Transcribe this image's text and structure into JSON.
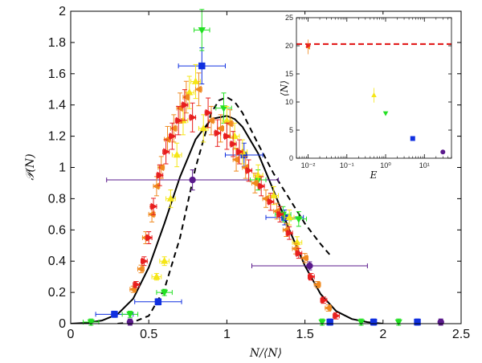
{
  "chart_data": [
    {
      "type": "scatter",
      "xlabel": "N/⟨N⟩",
      "ylabel": "𝒫(N)",
      "xlim": [
        0,
        2.5
      ],
      "ylim": [
        0,
        2
      ],
      "xticks": [
        0,
        0.5,
        1,
        1.5,
        2,
        2.5
      ],
      "xtick_labels": [
        "0",
        "0.5",
        "1",
        "1.5",
        "2",
        "2.5"
      ],
      "yticks": [
        0,
        0.2,
        0.4,
        0.6,
        0.8,
        1,
        1.2,
        1.4,
        1.6,
        1.8,
        2
      ],
      "ytick_labels": [
        "0",
        "0.2",
        "0.4",
        "0.6",
        "0.8",
        "1",
        "1.2",
        "1.4",
        "1.6",
        "1.8",
        "2"
      ],
      "grid": false,
      "series": [
        {
          "marker": "circle",
          "color": "#5a1a8c",
          "points": [
            [
              0.78,
              0.92,
              0.55
            ],
            [
              1.53,
              0.37,
              0.37
            ],
            [
              0.38,
              0.01,
              0
            ],
            [
              2.37,
              0.01,
              0
            ]
          ]
        },
        {
          "marker": "square",
          "color": "#1030e0",
          "points": [
            [
              0.28,
              0.06,
              0.12
            ],
            [
              0.56,
              0.14,
              0.15
            ],
            [
              0.84,
              1.65,
              0.15
            ],
            [
              1.11,
              1.08,
              0.12
            ],
            [
              1.37,
              0.68,
              0.12
            ],
            [
              1.66,
              0.01,
              0
            ],
            [
              1.94,
              0.01,
              0
            ],
            [
              2.22,
              0.01,
              0
            ]
          ]
        },
        {
          "marker": "triangle-down",
          "color": "#22e022",
          "points": [
            [
              0.13,
              0.01,
              0.05
            ],
            [
              0.38,
              0.06,
              0.05
            ],
            [
              0.6,
              0.2,
              0.05
            ],
            [
              0.84,
              1.88,
              0.05
            ],
            [
              0.98,
              1.38,
              0.05
            ],
            [
              1.2,
              0.92,
              0.05
            ],
            [
              1.36,
              0.7,
              0.05
            ],
            [
              1.46,
              0.67,
              0.05
            ],
            [
              1.61,
              0.01,
              0
            ],
            [
              1.86,
              0.01,
              0
            ],
            [
              2.1,
              0.01,
              0
            ]
          ]
        },
        {
          "marker": "triangle-up",
          "color": "#f5e617",
          "points": [
            [
              0.55,
              0.3,
              0.03
            ],
            [
              0.6,
              0.4,
              0.03
            ],
            [
              0.64,
              0.8,
              0.03
            ],
            [
              0.68,
              1.08,
              0.03
            ],
            [
              0.72,
              1.3,
              0.03
            ],
            [
              0.76,
              1.48,
              0.03
            ],
            [
              0.8,
              1.55,
              0.03
            ],
            [
              0.85,
              1.25,
              0.03
            ],
            [
              1.0,
              1.3,
              0.03
            ],
            [
              1.05,
              1.2,
              0.03
            ],
            [
              1.1,
              1.1,
              0.03
            ],
            [
              1.2,
              0.95,
              0.03
            ],
            [
              1.3,
              0.82,
              0.03
            ],
            [
              1.4,
              0.68,
              0.03
            ],
            [
              1.45,
              0.52,
              0.03
            ]
          ]
        },
        {
          "marker": "triangle-left",
          "color": "#f0891f",
          "points": [
            [
              0.4,
              0.22,
              0.02
            ],
            [
              0.45,
              0.35,
              0.02
            ],
            [
              0.48,
              0.55,
              0.02
            ],
            [
              0.52,
              0.7,
              0.02
            ],
            [
              0.55,
              0.88,
              0.02
            ],
            [
              0.58,
              1.0,
              0.02
            ],
            [
              0.62,
              1.18,
              0.02
            ],
            [
              0.66,
              1.25,
              0.02
            ],
            [
              0.7,
              1.38,
              0.02
            ],
            [
              0.74,
              1.45,
              0.02
            ],
            [
              0.82,
              1.5,
              0.02
            ],
            [
              0.9,
              1.3,
              0.02
            ],
            [
              0.96,
              1.25,
              0.02
            ],
            [
              1.02,
              1.28,
              0.02
            ],
            [
              1.06,
              1.05,
              0.02
            ],
            [
              1.12,
              1.0,
              0.02
            ],
            [
              1.18,
              0.9,
              0.02
            ],
            [
              1.25,
              0.8,
              0.02
            ],
            [
              1.32,
              0.72,
              0.02
            ],
            [
              1.38,
              0.6,
              0.02
            ],
            [
              1.44,
              0.48,
              0.02
            ],
            [
              1.5,
              0.42,
              0.02
            ],
            [
              1.58,
              0.25,
              0.02
            ],
            [
              1.65,
              0.1,
              0.02
            ]
          ]
        },
        {
          "marker": "triangle-right",
          "color": "#e81e1e",
          "points": [
            [
              0.42,
              0.25,
              0.02
            ],
            [
              0.47,
              0.4,
              0.02
            ],
            [
              0.5,
              0.55,
              0.02
            ],
            [
              0.53,
              0.75,
              0.02
            ],
            [
              0.57,
              0.95,
              0.02
            ],
            [
              0.61,
              1.1,
              0.02
            ],
            [
              0.65,
              1.2,
              0.02
            ],
            [
              0.69,
              1.3,
              0.02
            ],
            [
              0.73,
              1.4,
              0.02
            ],
            [
              0.78,
              1.32,
              0.02
            ],
            [
              0.88,
              1.35,
              0.02
            ],
            [
              0.94,
              1.22,
              0.02
            ],
            [
              1.0,
              1.2,
              0.02
            ],
            [
              1.04,
              1.15,
              0.02
            ],
            [
              1.08,
              1.1,
              0.02
            ],
            [
              1.14,
              0.98,
              0.02
            ],
            [
              1.22,
              0.88,
              0.02
            ],
            [
              1.28,
              0.78,
              0.02
            ],
            [
              1.34,
              0.7,
              0.02
            ],
            [
              1.4,
              0.58,
              0.02
            ],
            [
              1.46,
              0.45,
              0.02
            ],
            [
              1.54,
              0.3,
              0.02
            ],
            [
              1.62,
              0.15,
              0.02
            ],
            [
              1.7,
              0.05,
              0.02
            ]
          ]
        }
      ],
      "curves": [
        {
          "style": "solid",
          "color": "#000000",
          "x": [
            0.0,
            0.1,
            0.2,
            0.3,
            0.4,
            0.5,
            0.6,
            0.7,
            0.8,
            0.9,
            1.0,
            1.05,
            1.1,
            1.2,
            1.3,
            1.4,
            1.5,
            1.6,
            1.7,
            1.8,
            1.9,
            2.0
          ],
          "y": [
            0.0,
            0.005,
            0.02,
            0.06,
            0.16,
            0.36,
            0.64,
            0.94,
            1.18,
            1.31,
            1.33,
            1.31,
            1.26,
            1.09,
            0.85,
            0.6,
            0.37,
            0.19,
            0.08,
            0.03,
            0.01,
            0.0
          ]
        },
        {
          "style": "dashed",
          "color": "#000000",
          "x": [
            0.3,
            0.4,
            0.5,
            0.6,
            0.7,
            0.8,
            0.9,
            0.95,
            1.0,
            1.05,
            1.1,
            1.2,
            1.3,
            1.4,
            1.5,
            1.6,
            1.66
          ],
          "y": [
            0.0,
            0.01,
            0.05,
            0.22,
            0.55,
            1.0,
            1.35,
            1.43,
            1.45,
            1.42,
            1.35,
            1.15,
            0.96,
            0.8,
            0.64,
            0.51,
            0.44
          ]
        }
      ]
    },
    {
      "type": "scatter",
      "xlabel": "E",
      "ylabel": "⟨N⟩",
      "xscale": "log",
      "xlim": [
        0.005,
        50
      ],
      "ylim": [
        0,
        25
      ],
      "xtick_labels": [
        "10⁻²",
        "10⁻¹",
        "10⁰",
        "10¹"
      ],
      "ytick_labels": [
        "0",
        "5",
        "10",
        "15",
        "20",
        "25"
      ],
      "reference_line": {
        "y": 20.3,
        "style": "dashed",
        "color": "#e01010"
      },
      "series": [
        {
          "marker": "triangle-left",
          "color": "#f0891f",
          "x": 0.01,
          "y": 19.8
        },
        {
          "marker": "triangle-right",
          "color": "#e81e1e",
          "x": 0.01,
          "y": 20.0
        },
        {
          "marker": "triangle-up",
          "color": "#f5e617",
          "x": 0.5,
          "y": 11.2
        },
        {
          "marker": "triangle-down",
          "color": "#22e022",
          "x": 1.0,
          "y": 8.0
        },
        {
          "marker": "square",
          "color": "#1030e0",
          "x": 5.0,
          "y": 3.5
        },
        {
          "marker": "circle",
          "color": "#5a1a8c",
          "x": 30.0,
          "y": 1.1
        }
      ]
    }
  ]
}
